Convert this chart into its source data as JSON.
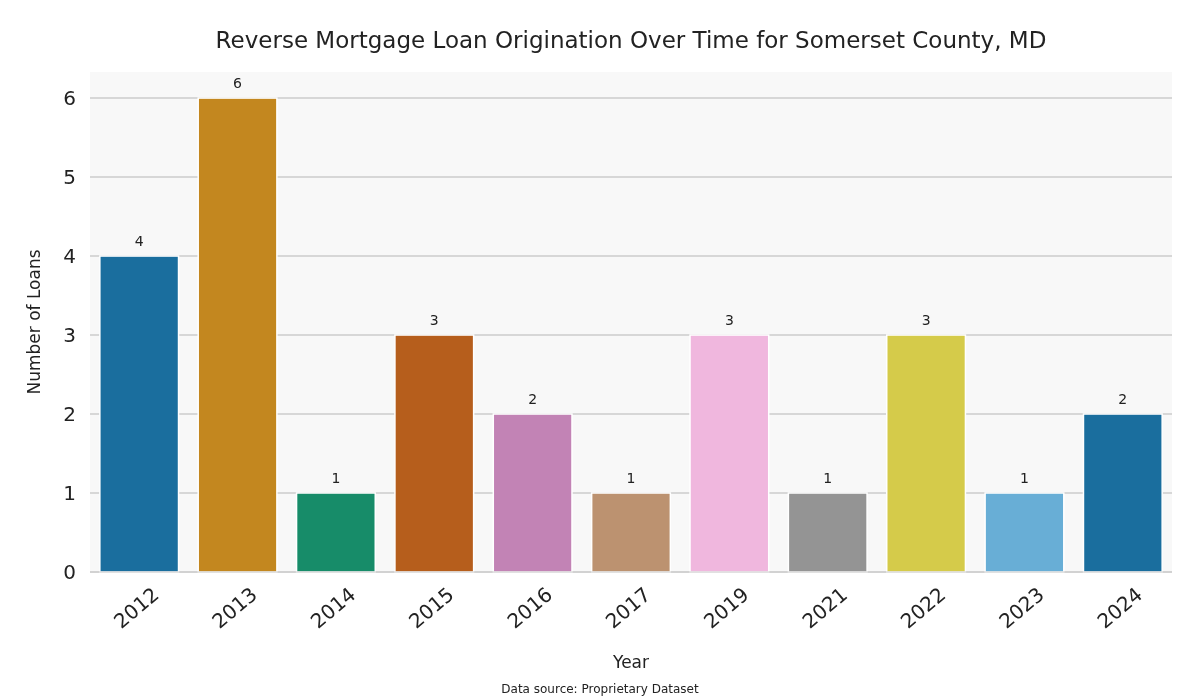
{
  "chart_data": {
    "type": "bar",
    "title": "Reverse Mortgage Loan Origination Over Time for Somerset County, MD",
    "xlabel": "Year",
    "ylabel": "Number of Loans",
    "categories": [
      "2012",
      "2013",
      "2014",
      "2015",
      "2016",
      "2017",
      "2019",
      "2021",
      "2022",
      "2023",
      "2024"
    ],
    "values": [
      4,
      6,
      1,
      3,
      2,
      1,
      3,
      1,
      3,
      1,
      2
    ],
    "colors": [
      "#1a6e9e",
      "#c3871f",
      "#178c69",
      "#b65e1c",
      "#c283b5",
      "#bc9270",
      "#f0b7de",
      "#949494",
      "#d5cb4a",
      "#68aed6",
      "#1a6e9e"
    ],
    "ylim": [
      0,
      6.33
    ],
    "yticks": [
      0,
      1,
      2,
      3,
      4,
      5,
      6
    ],
    "grid": "y",
    "data_labels": true,
    "annotations": [
      "Data source: Proprietary Dataset"
    ]
  }
}
